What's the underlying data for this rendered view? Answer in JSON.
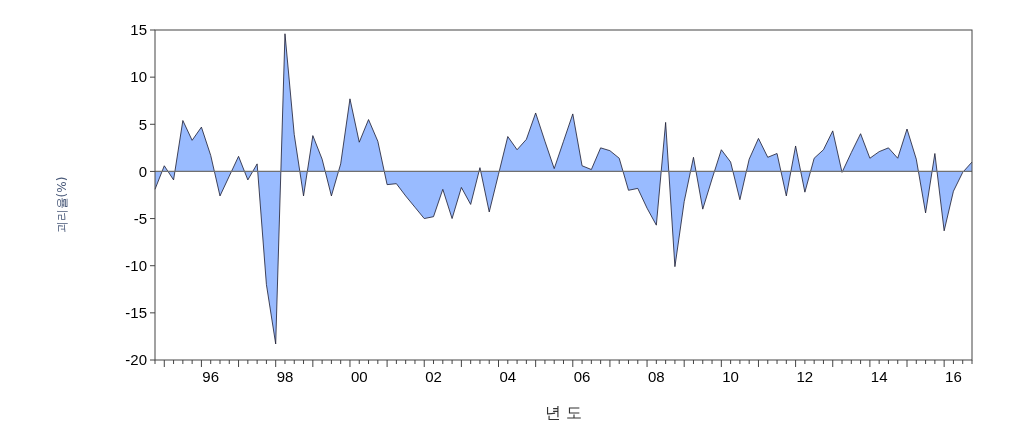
{
  "chart_data": {
    "type": "area",
    "xlabel": "년 도",
    "ylabel": "괴리율(%)",
    "ylim": [
      -20,
      15
    ],
    "yticks": [
      -20,
      -15,
      -10,
      -5,
      0,
      5,
      10,
      15
    ],
    "categories": [
      null,
      null,
      null,
      null,
      null,
      null,
      "96",
      null,
      null,
      null,
      null,
      null,
      null,
      null,
      "98",
      null,
      null,
      null,
      null,
      null,
      null,
      null,
      "00",
      null,
      null,
      null,
      null,
      null,
      null,
      null,
      "02",
      null,
      null,
      null,
      null,
      null,
      null,
      null,
      "04",
      null,
      null,
      null,
      null,
      null,
      null,
      null,
      "06",
      null,
      null,
      null,
      null,
      null,
      null,
      null,
      "08",
      null,
      null,
      null,
      null,
      null,
      null,
      null,
      "10",
      null,
      null,
      null,
      null,
      null,
      null,
      null,
      "12",
      null,
      null,
      null,
      null,
      null,
      null,
      null,
      "14",
      null,
      null,
      null,
      null,
      null,
      null,
      null,
      "16",
      null,
      null
    ],
    "ref_lines": [
      {
        "axis": "y",
        "value": 0,
        "color": "#707070"
      }
    ],
    "series": [
      {
        "color": "#99bbff",
        "values": [
          -1.9,
          0.6,
          -0.9,
          5.4,
          3.3,
          4.7,
          1.7,
          -2.6,
          -0.5,
          1.6,
          -0.9,
          0.8,
          -12,
          -18.3,
          14.6,
          3.9,
          -2.6,
          3.8,
          1.3,
          -2.6,
          0.8,
          7.7,
          3.1,
          5.5,
          3.2,
          -1.4,
          -1.3,
          -2.6,
          -3.8,
          -5,
          -4.8,
          -1.9,
          -5,
          -1.7,
          -3.5,
          0.4,
          -4.3,
          -0.3,
          3.7,
          2.3,
          3.4,
          6.2,
          3.2,
          0.3,
          3.2,
          6.1,
          0.6,
          0.2,
          2.5,
          2.2,
          1.4,
          -2,
          -1.8,
          -3.9,
          -5.7,
          5.2,
          -10.1,
          -3.2,
          1.5,
          -4,
          -0.8,
          2.3,
          1,
          -3,
          1.3,
          3.5,
          1.5,
          1.9,
          -2.6,
          2.7,
          -2.2,
          1.4,
          2.3,
          4.3,
          -0.1,
          2,
          4,
          1.4,
          2.1,
          2.5,
          1.4,
          4.5,
          1.3,
          -4.4,
          1.9,
          -6.3,
          -2.1,
          -0.1,
          1
        ]
      }
    ]
  }
}
